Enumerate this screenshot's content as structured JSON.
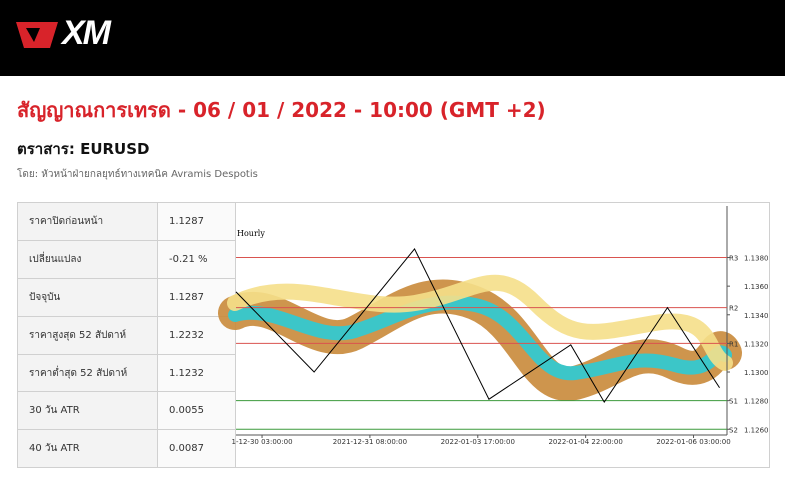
{
  "header": {
    "logo": "XM"
  },
  "title": "สัญญาณการเทรด - 06 / 01 / 2022 - 10:00 (GMT +2)",
  "instrument": "ตราสาร: EURUSD",
  "byline": "โดย: หัวหน้าฝ่ายกลยุทธ์ทางเทคนิค Avramis Despotis",
  "table": {
    "rows": [
      [
        "ราคาปิดก่อนหน้า",
        "1.1287"
      ],
      [
        "เปลี่ยนแปลง",
        "-0.21 %"
      ],
      [
        "ปัจจุบัน",
        "1.1287"
      ],
      [
        "ราคาสูงสุด 52 สัปดาห์",
        "1.2232"
      ],
      [
        "ราคาต่ำสุด 52 สัปดาห์",
        "1.1232"
      ],
      [
        "30 วัน ATR",
        "0.0055"
      ],
      [
        "40 วัน ATR",
        "0.0087"
      ]
    ]
  },
  "chart": {
    "type": "line",
    "title": "Hourly",
    "x": [
      -7,
      14,
      41,
      61,
      83,
      92,
      109,
      123
    ],
    "values": [
      1.1356,
      1.13,
      1.1386,
      1.1281,
      1.1319,
      1.1279,
      1.1345,
      1.1289
    ],
    "color": "#000000",
    "xlim": [
      -7,
      125
    ],
    "xticks": [
      {
        "value": 0,
        "label": "1-12-30 03:00:00"
      },
      {
        "value": 29,
        "label": "2021-12-31 08:00:00"
      },
      {
        "value": 58,
        "label": "2022-01-03 17:00:00"
      },
      {
        "value": 87,
        "label": "2022-01-04 22:00:00"
      },
      {
        "value": 116,
        "label": "2022-01-06 03:00:00"
      }
    ],
    "ylim": [
      1.1256,
      1.1416
    ],
    "yticks": [
      {
        "value": 1.126,
        "label": "1.1260"
      },
      {
        "value": 1.128,
        "label": "1.1280"
      },
      {
        "value": 1.13,
        "label": "1.1300"
      },
      {
        "value": 1.132,
        "label": "1.1320"
      },
      {
        "value": 1.134,
        "label": "1.1340"
      },
      {
        "value": 1.136,
        "label": "1.1360"
      },
      {
        "value": 1.138,
        "label": "1.1380"
      }
    ],
    "levels": [
      {
        "name": "R3",
        "value": 1.138,
        "color": "#d9534f"
      },
      {
        "name": "R2",
        "value": 1.1345,
        "color": "#d9534f"
      },
      {
        "name": "R1",
        "value": 1.132,
        "color": "#d9534f"
      },
      {
        "name": "S1",
        "value": 1.128,
        "color": "#3c9a3c"
      },
      {
        "name": "S2",
        "value": 1.126,
        "color": "#3c9a3c"
      }
    ]
  }
}
